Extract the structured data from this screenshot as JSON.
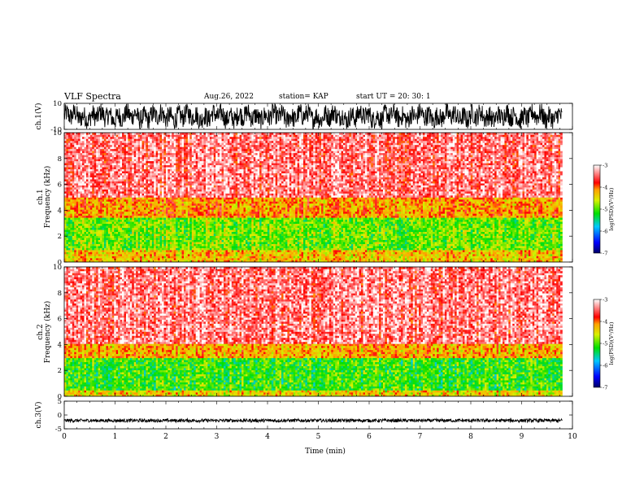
{
  "header": {
    "title": "VLF Spectra",
    "date": "Aug.26, 2022",
    "station": "station= KAP",
    "start": "start  UT  =   20: 30: 1"
  },
  "chart_data": [
    {
      "type": "line",
      "panel": "ch1-waveform",
      "ylabel": "ch.1(V)",
      "ylim": [
        -10,
        10
      ],
      "yticks": [
        -10,
        10
      ],
      "xlim": [
        0,
        10
      ],
      "color": "#000000"
    },
    {
      "type": "heatmap",
      "panel": "ch1-spectrogram",
      "ylabel": "ch.1 Frequency (kHz)",
      "ylim": [
        0,
        10
      ],
      "yticks": [
        0,
        2,
        4,
        6,
        8,
        10
      ],
      "xlim": [
        0,
        9.8
      ],
      "colorbar": {
        "label": "log(PSD)(V²/Hz)",
        "ticks": [
          -7,
          -6,
          -5,
          -4,
          -3
        ],
        "range": [
          -7,
          -3
        ]
      },
      "bands": [
        {
          "f": [
            0,
            1
          ],
          "level": -4.3
        },
        {
          "f": [
            1,
            3.5
          ],
          "level": -4.9
        },
        {
          "f": [
            3.5,
            5
          ],
          "level": -4.1
        },
        {
          "f": [
            5,
            10
          ],
          "level": -3.4
        }
      ]
    },
    {
      "type": "heatmap",
      "panel": "ch2-spectrogram",
      "ylabel": "ch.2 Frequency (kHz)",
      "ylim": [
        0,
        10
      ],
      "yticks": [
        0,
        2,
        4,
        6,
        8,
        10
      ],
      "xlim": [
        0,
        9.8
      ],
      "colorbar": {
        "label": "log(PSD)(V²/Hz)",
        "ticks": [
          -7,
          -6,
          -5,
          -4,
          -3
        ],
        "range": [
          -7,
          -3
        ]
      },
      "bands": [
        {
          "f": [
            0,
            0.5
          ],
          "level": -4.4
        },
        {
          "f": [
            0.5,
            3
          ],
          "level": -5.1
        },
        {
          "f": [
            3,
            4
          ],
          "level": -4.2
        },
        {
          "f": [
            4,
            10
          ],
          "level": -3.4
        }
      ]
    },
    {
      "type": "line",
      "panel": "ch3-waveform",
      "ylabel": "ch.3(V)",
      "ylim": [
        -5,
        5
      ],
      "yticks": [
        -5,
        0,
        5
      ],
      "xlim": [
        0,
        10
      ],
      "xticks": [
        0,
        1,
        2,
        3,
        4,
        5,
        6,
        7,
        8,
        9,
        10
      ],
      "xlabel": "Time  (min)",
      "color": "#000000"
    }
  ]
}
